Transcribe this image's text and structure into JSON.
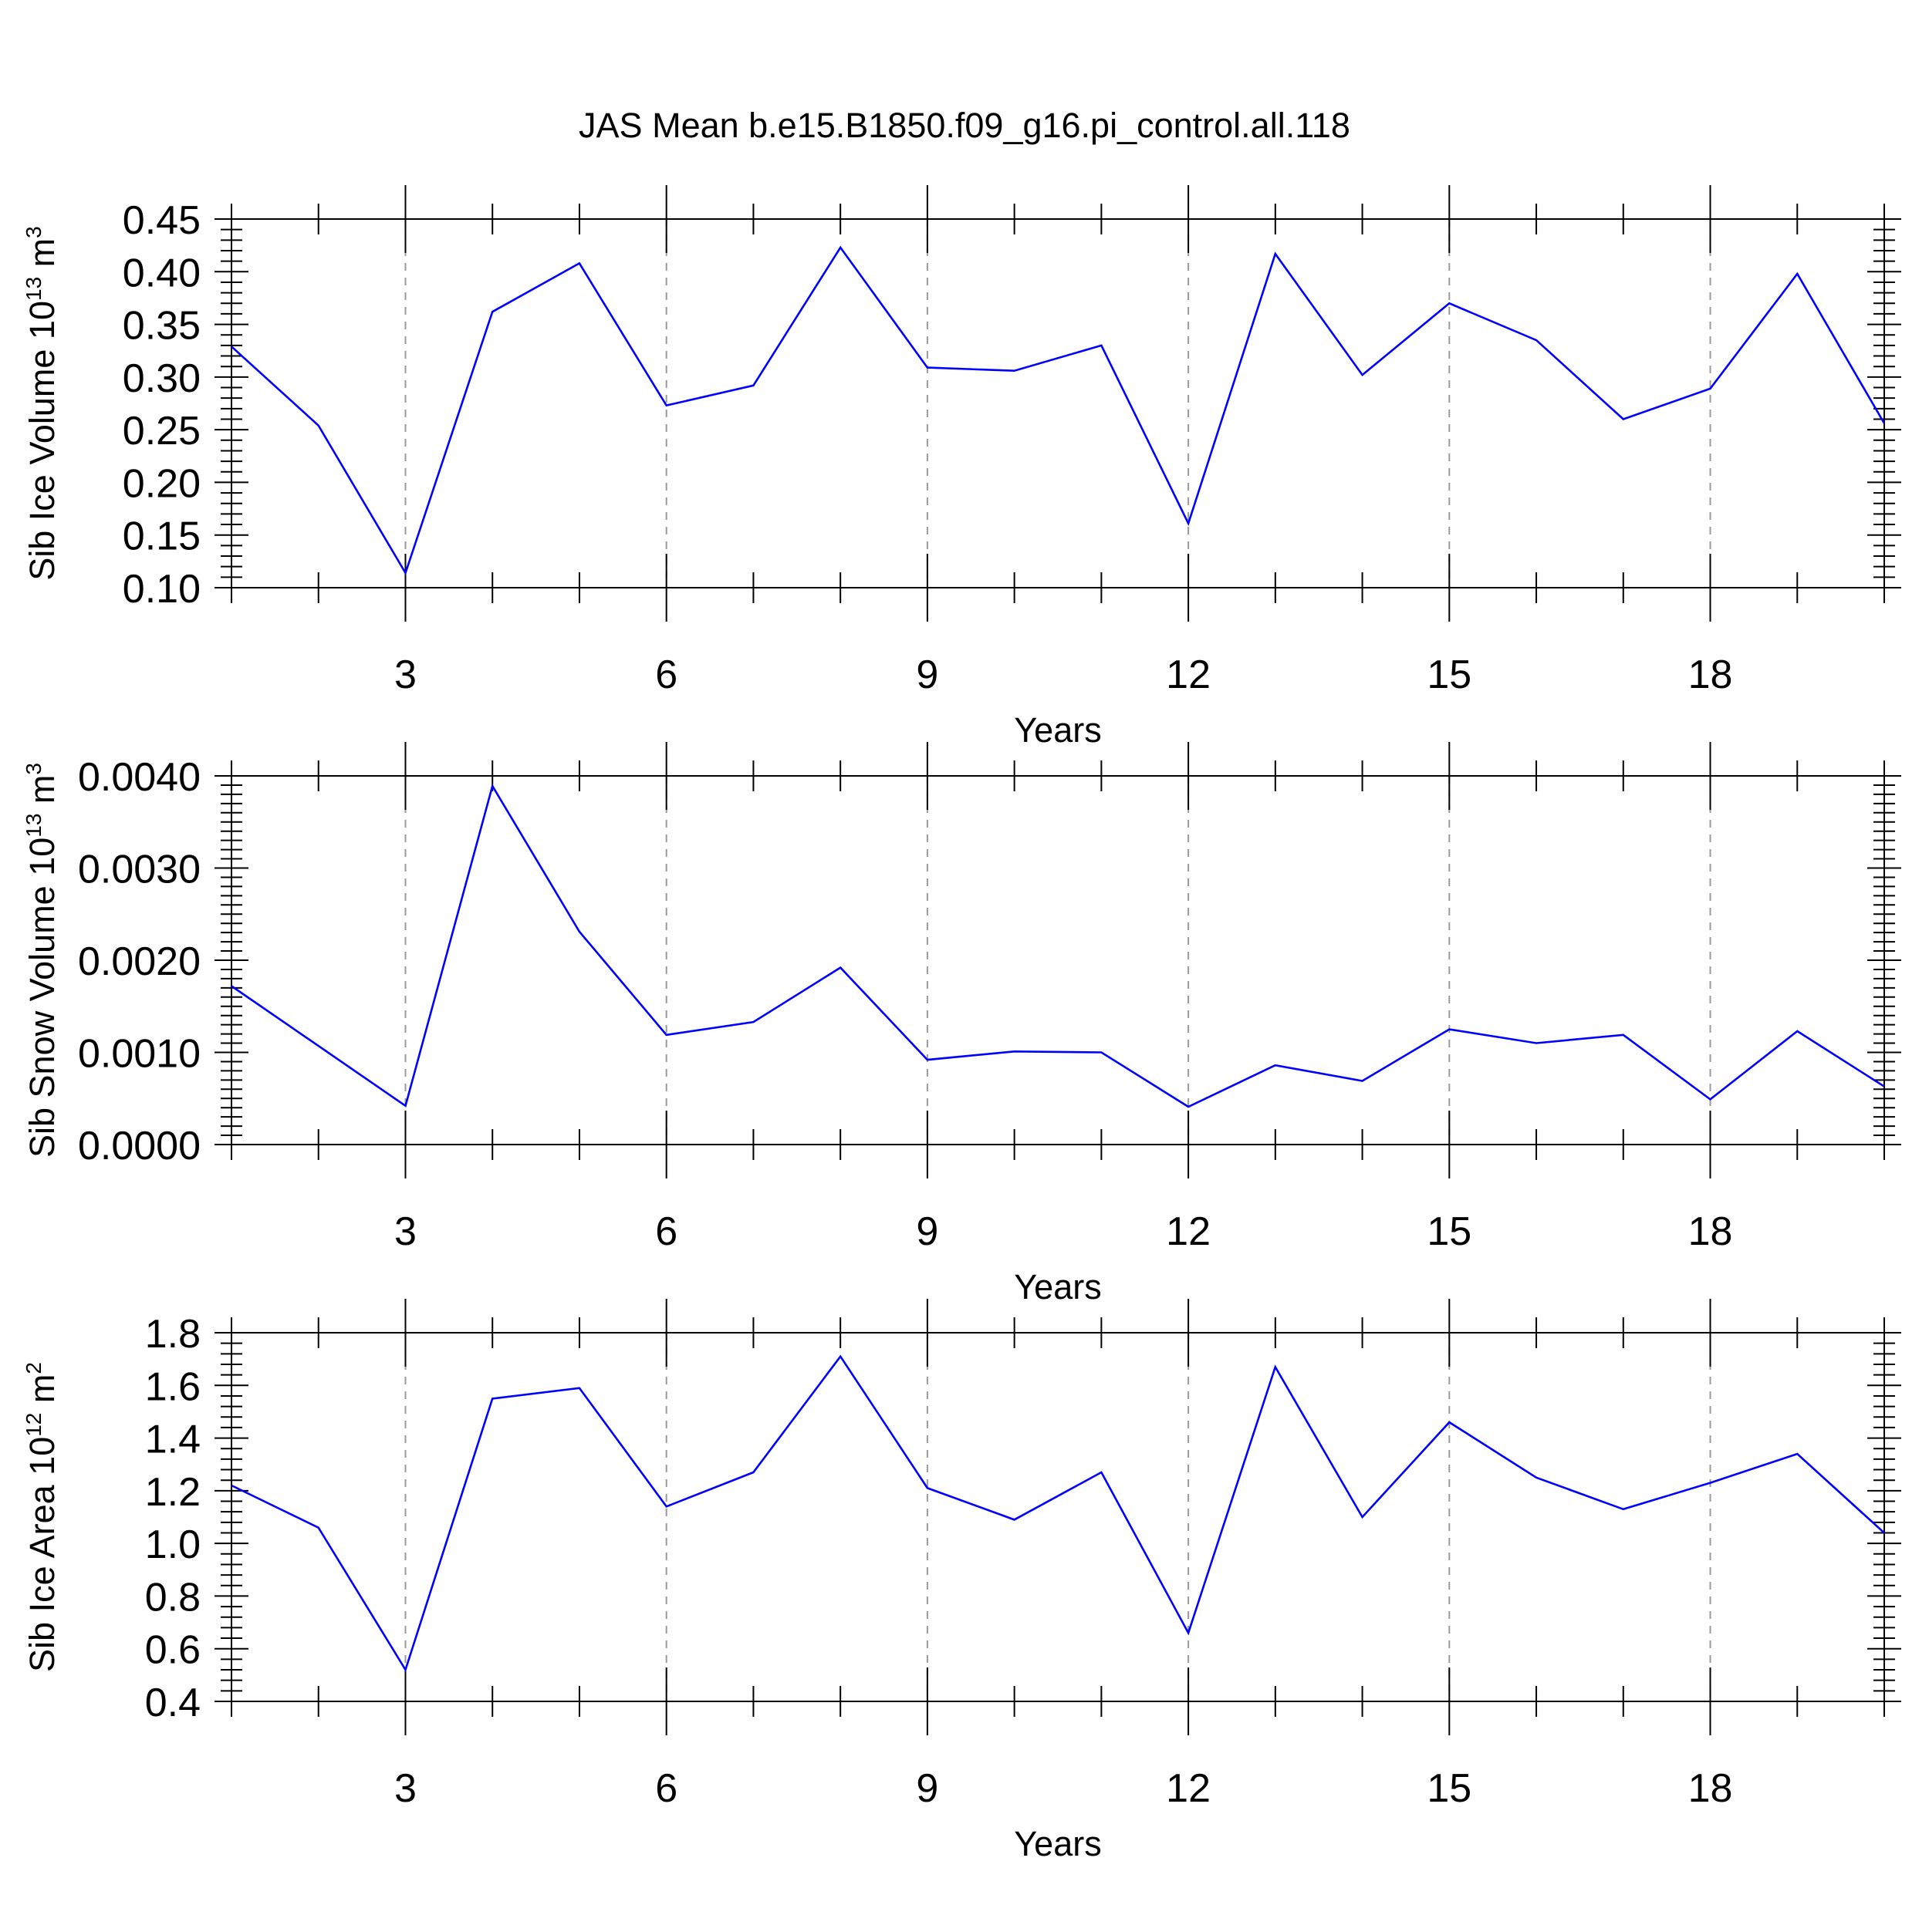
{
  "title": "JAS Mean b.e15.B1850.f09_g16.pi_control.all.118",
  "colors": {
    "line": "#0000ff",
    "axis": "#000000",
    "grid": "#9a9a9a",
    "background": "#ffffff"
  },
  "chart_data": [
    {
      "type": "line",
      "xlabel": "Years",
      "ylabel": {
        "text": "Sib Ice Volume 10",
        "sup": "13",
        "unit": " m",
        "unit_sup": "3"
      },
      "xlim": [
        1,
        20
      ],
      "ylim": [
        0.1,
        0.45
      ],
      "xticks": [
        3,
        6,
        9,
        12,
        15,
        18
      ],
      "yticks": [
        "0.10",
        "0.15",
        "0.20",
        "0.25",
        "0.30",
        "0.35",
        "0.40",
        "0.45"
      ],
      "grid": "vertical dashed at major x ticks",
      "x": [
        1,
        2,
        3,
        4,
        5,
        6,
        7,
        8,
        9,
        10,
        11,
        12,
        13,
        14,
        15,
        16,
        17,
        18,
        19,
        20
      ],
      "values": [
        0.329,
        0.254,
        0.114,
        0.362,
        0.408,
        0.273,
        0.292,
        0.423,
        0.309,
        0.306,
        0.33,
        0.161,
        0.417,
        0.302,
        0.37,
        0.335,
        0.26,
        0.289,
        0.398,
        0.256
      ]
    },
    {
      "type": "line",
      "xlabel": "Years",
      "ylabel": {
        "text": "Sib Snow Volume 10",
        "sup": "13",
        "unit": " m",
        "unit_sup": "3"
      },
      "xlim": [
        1,
        20
      ],
      "ylim": [
        0.0,
        0.004
      ],
      "xticks": [
        3,
        6,
        9,
        12,
        15,
        18
      ],
      "yticks": [
        "0.0000",
        "0.0010",
        "0.0020",
        "0.0030",
        "0.0040"
      ],
      "grid": "vertical dashed at major x ticks",
      "x": [
        1,
        2,
        3,
        4,
        5,
        6,
        7,
        8,
        9,
        10,
        11,
        12,
        13,
        14,
        15,
        16,
        17,
        18,
        19,
        20
      ],
      "values": [
        0.00172,
        0.00107,
        0.00042,
        0.00389,
        0.00231,
        0.00119,
        0.00133,
        0.00192,
        0.00092,
        0.00101,
        0.001,
        0.00041,
        0.00086,
        0.00069,
        0.00125,
        0.0011,
        0.00119,
        0.00049,
        0.00123,
        0.00063
      ]
    },
    {
      "type": "line",
      "xlabel": "Years",
      "ylabel": {
        "text": "Sib Ice Area 10",
        "sup": "12",
        "unit": " m",
        "unit_sup": "2"
      },
      "xlim": [
        1,
        20
      ],
      "ylim": [
        0.4,
        1.8
      ],
      "xticks": [
        3,
        6,
        9,
        12,
        15,
        18
      ],
      "yticks": [
        "0.4",
        "0.6",
        "0.8",
        "1.0",
        "1.2",
        "1.4",
        "1.6",
        "1.8"
      ],
      "grid": "vertical dashed at major x ticks",
      "x": [
        1,
        2,
        3,
        4,
        5,
        6,
        7,
        8,
        9,
        10,
        11,
        12,
        13,
        14,
        15,
        16,
        17,
        18,
        19,
        20
      ],
      "values": [
        1.22,
        1.06,
        0.52,
        1.55,
        1.59,
        1.14,
        1.27,
        1.71,
        1.21,
        1.09,
        1.27,
        0.66,
        1.67,
        1.1,
        1.46,
        1.25,
        1.13,
        1.23,
        1.34,
        1.04
      ]
    }
  ]
}
